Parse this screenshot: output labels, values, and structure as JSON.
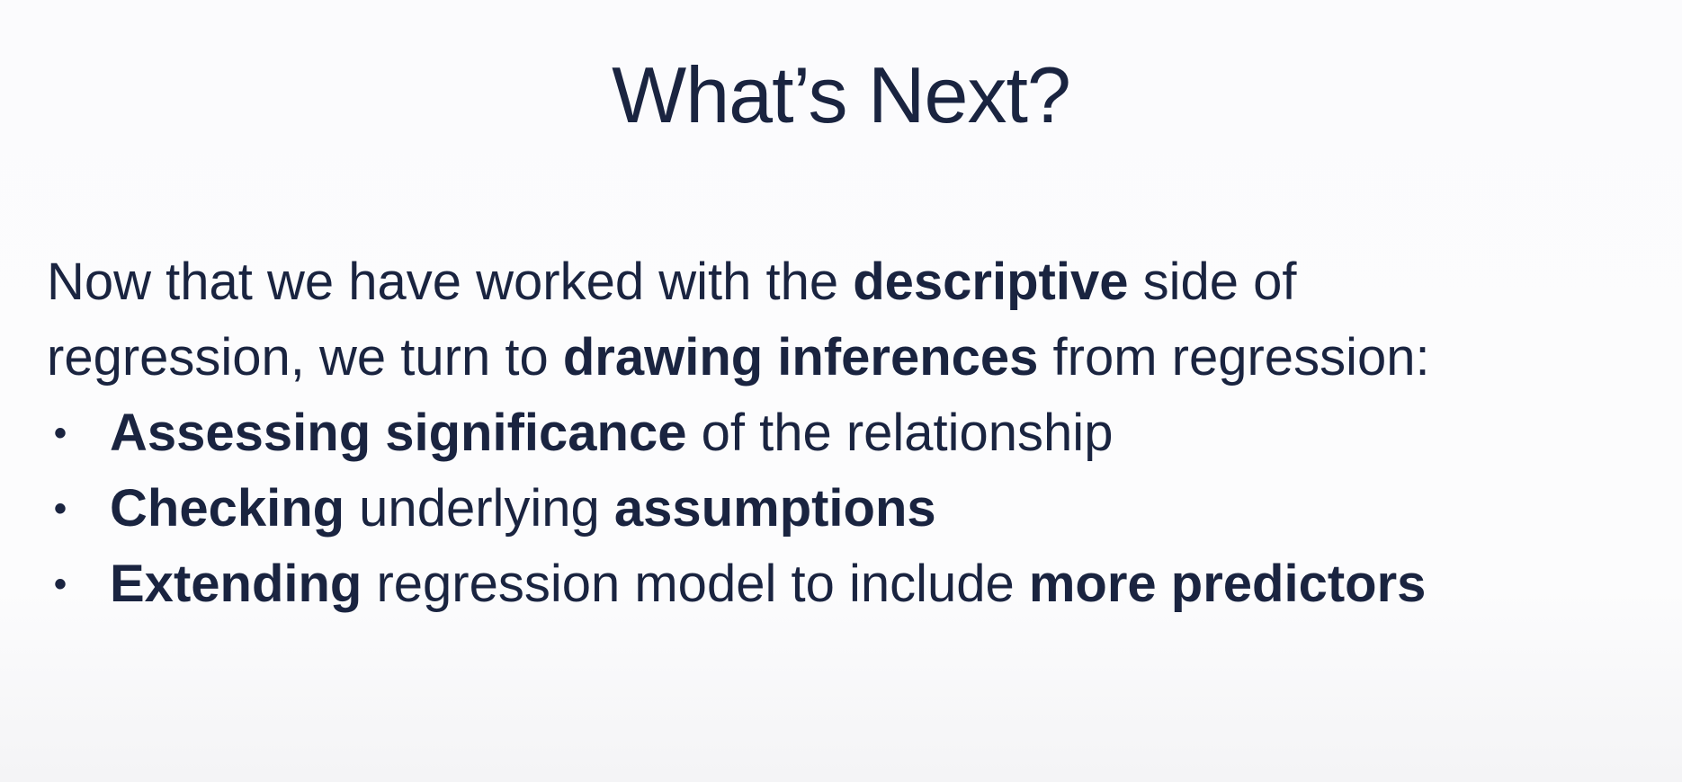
{
  "slide": {
    "title": "What’s Next?",
    "intro": {
      "line1": [
        {
          "text": "Now that we have worked with the ",
          "bold": false
        },
        {
          "text": "descriptive",
          "bold": true
        },
        {
          "text": " side of",
          "bold": false
        }
      ],
      "line2": [
        {
          "text": "regression, we turn to ",
          "bold": false
        },
        {
          "text": "drawing inferences",
          "bold": true
        },
        {
          "text": " from regression:",
          "bold": false
        }
      ]
    },
    "bullet_glyph": "•",
    "bullets": [
      [
        {
          "text": "Assessing significance",
          "bold": true
        },
        {
          "text": " of the relationship",
          "bold": false
        }
      ],
      [
        {
          "text": "Checking",
          "bold": true
        },
        {
          "text": " underlying ",
          "bold": false
        },
        {
          "text": "assumptions",
          "bold": true
        }
      ],
      [
        {
          "text": "Extending",
          "bold": true
        },
        {
          "text": " regression model to include ",
          "bold": false
        },
        {
          "text": "more predictors",
          "bold": true
        }
      ]
    ]
  },
  "colors": {
    "text": "#1a2440",
    "background": "#fbfbfd"
  }
}
